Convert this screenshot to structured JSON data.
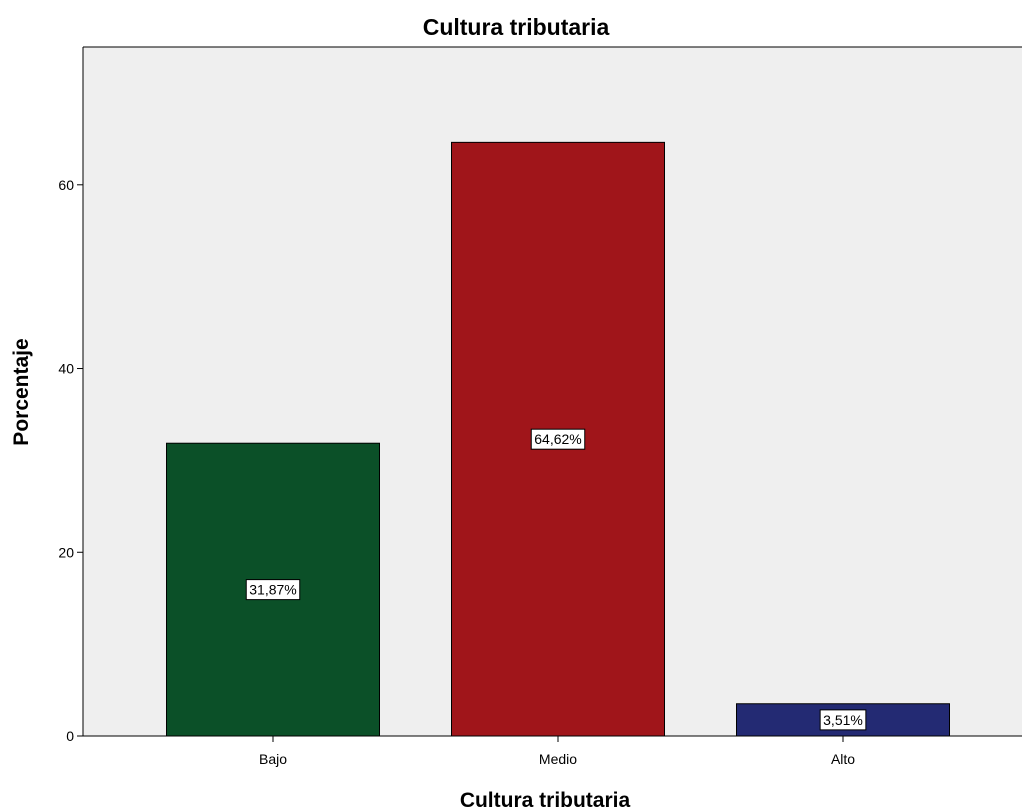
{
  "chart_data": {
    "type": "bar",
    "title": "Cultura tributaria",
    "xlabel": "Cultura tributaria",
    "ylabel": "Porcentaje",
    "categories": [
      "Bajo",
      "Medio",
      "Alto"
    ],
    "values": [
      31.87,
      64.62,
      3.51
    ],
    "data_labels": [
      "31,87%",
      "64,62%",
      "3,51%"
    ],
    "colors": [
      "#0b5028",
      "#a0151a",
      "#232a73"
    ],
    "ylim": [
      0,
      75
    ],
    "yticks": [
      0,
      20,
      40,
      60
    ],
    "ytick_labels": [
      "0",
      "20",
      "40",
      "60"
    ],
    "grid": false,
    "plot_background": "#efefef"
  }
}
